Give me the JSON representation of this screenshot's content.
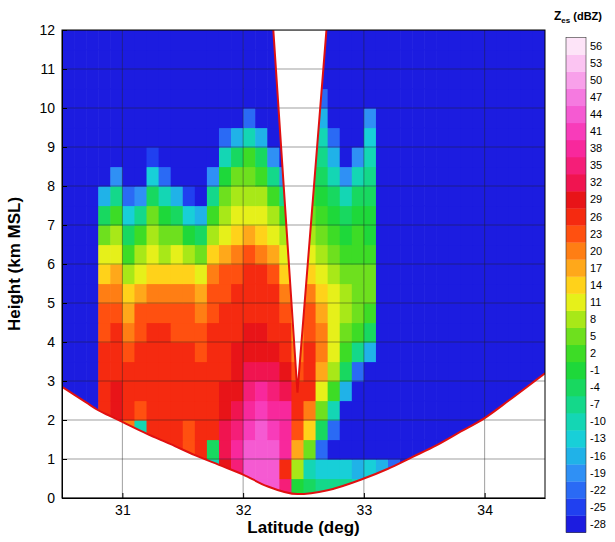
{
  "chart_data": {
    "type": "heatmap",
    "x_label": "Latitude (deg)",
    "y_label": "Height (km MSL)",
    "xlim": [
      30.5,
      34.5
    ],
    "ylim": [
      0,
      12
    ],
    "xticks": [
      31,
      32,
      33,
      34
    ],
    "yticks": [
      0,
      1,
      2,
      3,
      4,
      5,
      6,
      7,
      8,
      9,
      10,
      11,
      12
    ],
    "grid": true,
    "x": [
      30.55,
      30.65,
      30.75,
      30.85,
      30.95,
      31.05,
      31.15,
      31.25,
      31.35,
      31.45,
      31.55,
      31.65,
      31.75,
      31.85,
      31.95,
      32.05,
      32.15,
      32.25,
      32.35,
      32.45,
      32.55,
      32.65,
      32.75,
      32.85,
      32.95,
      33.05,
      33.15,
      33.25,
      33.35,
      33.45,
      33.55,
      33.65,
      33.75,
      33.85,
      33.95,
      34.05,
      34.15,
      34.25,
      34.35,
      34.45
    ],
    "y": [
      0.25,
      0.75,
      1.25,
      1.75,
      2.25,
      2.75,
      3.25,
      3.75,
      4.25,
      4.75,
      5.25,
      5.75,
      6.25,
      6.75,
      7.25,
      7.75,
      8.25,
      8.75,
      9.25,
      9.75,
      10.25,
      10.75,
      11.25,
      11.75
    ],
    "z": [
      [
        null,
        null,
        null,
        null,
        null,
        null,
        null,
        null,
        null,
        null,
        null,
        null,
        null,
        null,
        null,
        41,
        44,
        44,
        35,
        -1,
        -4,
        -7,
        -7,
        -7,
        -10,
        null,
        null,
        null,
        null,
        null,
        null,
        null,
        null,
        null,
        null,
        null,
        null,
        null,
        null,
        null
      ],
      [
        null,
        null,
        null,
        null,
        null,
        null,
        null,
        null,
        null,
        null,
        null,
        23,
        -10,
        29,
        35,
        44,
        46,
        44,
        26,
        8,
        -10,
        -13,
        -13,
        -13,
        -16,
        -13,
        -16,
        -22,
        -28,
        null,
        null,
        null,
        null,
        null,
        null,
        null,
        null,
        null,
        null,
        null
      ],
      [
        null,
        null,
        null,
        null,
        null,
        null,
        null,
        null,
        26,
        26,
        24,
        26,
        -4,
        32,
        38,
        44,
        46,
        44,
        38,
        17,
        5,
        -22,
        -28,
        -28,
        -28,
        -28,
        -28,
        -28,
        -28,
        -28,
        -28,
        -28,
        null,
        null,
        null,
        null,
        null,
        null,
        null,
        null
      ],
      [
        null,
        null,
        null,
        null,
        26,
        20,
        -10,
        26,
        27,
        26,
        25,
        26,
        26,
        32,
        36,
        41,
        44,
        42,
        40,
        23,
        14,
        -4,
        -22,
        -28,
        -28,
        -28,
        -28,
        -28,
        -28,
        -28,
        -28,
        -28,
        -28,
        -28,
        -28,
        null,
        null,
        null,
        null,
        null
      ],
      [
        null,
        -28,
        -28,
        26,
        29,
        26,
        23,
        27,
        28,
        26,
        26,
        26,
        27,
        30,
        33,
        38,
        41,
        40,
        38,
        26,
        20,
        5,
        -10,
        -28,
        -28,
        -28,
        -28,
        -28,
        -28,
        -28,
        -28,
        -28,
        -28,
        -28,
        -28,
        -28,
        -28,
        null,
        null,
        null
      ],
      [
        -28,
        -28,
        -28,
        26,
        29,
        26,
        26,
        28,
        28,
        26,
        26,
        26,
        27,
        29,
        31,
        35,
        38,
        37,
        34,
        26,
        26,
        11,
        2,
        -16,
        -28,
        -28,
        -28,
        -28,
        -28,
        -28,
        -28,
        -28,
        -28,
        -28,
        -28,
        -28,
        -28,
        -28,
        -28,
        -28
      ],
      [
        -28,
        -28,
        -28,
        26,
        28,
        26,
        26,
        28,
        27,
        26,
        26,
        26,
        27,
        28,
        30,
        32,
        34,
        33,
        30,
        24,
        27,
        17,
        8,
        -4,
        -22,
        -28,
        -28,
        -28,
        -28,
        -28,
        -28,
        -28,
        -28,
        -28,
        -28,
        -28,
        -28,
        -28,
        -28,
        -28
      ],
      [
        -28,
        -28,
        -28,
        26,
        27,
        25,
        26,
        28,
        26,
        26,
        26,
        25,
        26,
        28,
        29,
        30,
        31,
        30,
        28,
        20,
        26,
        20,
        11,
        2,
        -7,
        -16,
        -28,
        -28,
        -28,
        -28,
        -28,
        -28,
        -28,
        -28,
        -28,
        -28,
        -28,
        -28,
        -28,
        -28
      ],
      [
        -28,
        -28,
        -28,
        24,
        26,
        22,
        25,
        27,
        26,
        25,
        25,
        24,
        26,
        27,
        28,
        29,
        29,
        28,
        26,
        17,
        25,
        20,
        11,
        5,
        2,
        -4,
        -28,
        -28,
        -28,
        -28,
        -28,
        -28,
        -28,
        -28,
        -28,
        -28,
        -28,
        -28,
        -28,
        -28
      ],
      [
        -28,
        -28,
        -28,
        23,
        25,
        17,
        23,
        25,
        24,
        23,
        23,
        22,
        25,
        26,
        27,
        28,
        28,
        27,
        24,
        14,
        23,
        17,
        11,
        8,
        5,
        2,
        -28,
        -28,
        -28,
        -28,
        -28,
        -28,
        -28,
        -28,
        -28,
        -28,
        -28,
        -28,
        -28,
        -28
      ],
      [
        -28,
        -28,
        -28,
        20,
        22,
        14,
        17,
        22,
        20,
        20,
        20,
        17,
        23,
        25,
        26,
        27,
        27,
        26,
        20,
        null,
        20,
        14,
        11,
        8,
        5,
        5,
        -28,
        -28,
        -28,
        -28,
        -28,
        -28,
        -28,
        -28,
        -28,
        -28,
        -28,
        -28,
        -28,
        -28
      ],
      [
        -28,
        -28,
        -28,
        14,
        17,
        8,
        11,
        14,
        14,
        14,
        14,
        11,
        20,
        23,
        24,
        26,
        26,
        23,
        14,
        null,
        14,
        11,
        8,
        5,
        5,
        5,
        -28,
        -28,
        -28,
        -28,
        -28,
        -28,
        -28,
        -28,
        -28,
        -28,
        -28,
        -28,
        -28,
        -28
      ],
      [
        -28,
        -28,
        -28,
        11,
        11,
        2,
        8,
        11,
        8,
        11,
        8,
        5,
        14,
        17,
        20,
        23,
        20,
        17,
        11,
        null,
        11,
        8,
        5,
        2,
        2,
        2,
        -28,
        -28,
        -28,
        -28,
        -28,
        -28,
        -28,
        -28,
        -28,
        -28,
        -28,
        -28,
        -28,
        -28
      ],
      [
        -28,
        -28,
        -28,
        5,
        8,
        -4,
        2,
        8,
        5,
        5,
        -1,
        -4,
        8,
        11,
        14,
        17,
        14,
        11,
        8,
        null,
        8,
        5,
        2,
        -1,
        2,
        -1,
        -28,
        -28,
        -28,
        -28,
        -28,
        -28,
        -28,
        -28,
        -28,
        -28,
        -28,
        -28,
        -28,
        -28
      ],
      [
        -28,
        -28,
        -28,
        -4,
        2,
        -13,
        -7,
        5,
        -1,
        -4,
        -13,
        -16,
        2,
        8,
        11,
        11,
        11,
        8,
        2,
        null,
        5,
        2,
        -1,
        -4,
        -1,
        -1,
        -28,
        -28,
        -28,
        -28,
        -28,
        -28,
        -28,
        -28,
        -28,
        -28,
        -28,
        -28,
        -28,
        -28
      ],
      [
        -28,
        -28,
        -28,
        -16,
        -7,
        -22,
        -19,
        -4,
        -10,
        -16,
        -25,
        -28,
        -7,
        5,
        8,
        8,
        8,
        2,
        -7,
        null,
        2,
        -1,
        -4,
        -10,
        -4,
        -4,
        -28,
        -28,
        -28,
        -28,
        -28,
        -28,
        -28,
        -28,
        -28,
        -28,
        -28,
        -28,
        -28,
        -28
      ],
      [
        -28,
        -28,
        -28,
        -28,
        -19,
        -28,
        -28,
        -13,
        -22,
        -28,
        -28,
        -28,
        -19,
        -1,
        5,
        5,
        2,
        -7,
        -19,
        null,
        -4,
        -4,
        -10,
        -19,
        -10,
        -7,
        -28,
        -28,
        -28,
        -28,
        -28,
        -28,
        -28,
        -28,
        -28,
        -28,
        -28,
        -28,
        -28,
        -28
      ],
      [
        -28,
        -28,
        -28,
        -28,
        -28,
        -28,
        -28,
        -25,
        -28,
        -28,
        -28,
        -28,
        -28,
        -10,
        -4,
        2,
        -4,
        -19,
        -28,
        null,
        null,
        -7,
        -16,
        -28,
        -19,
        -10,
        -28,
        -28,
        -28,
        -28,
        -28,
        -28,
        -28,
        -28,
        -28,
        -28,
        -28,
        -28,
        -28,
        -28
      ],
      [
        -28,
        -28,
        -28,
        -28,
        -28,
        -28,
        -28,
        -28,
        -28,
        -28,
        -28,
        -28,
        -28,
        -22,
        -16,
        -10,
        -16,
        -28,
        -28,
        null,
        null,
        -10,
        -22,
        -28,
        -28,
        -13,
        -28,
        -28,
        -28,
        -28,
        -28,
        -28,
        -28,
        -28,
        -28,
        -28,
        -28,
        -28,
        -28,
        -28
      ],
      [
        -28,
        -28,
        -28,
        -28,
        -28,
        -28,
        -28,
        -28,
        -28,
        -28,
        -28,
        -28,
        -28,
        -28,
        -28,
        -22,
        -28,
        -28,
        -28,
        null,
        null,
        -16,
        -28,
        -28,
        -28,
        -19,
        -28,
        -28,
        -28,
        -28,
        -28,
        -28,
        -28,
        -28,
        -28,
        -28,
        -28,
        -28,
        -28,
        -28
      ],
      [
        -28,
        -28,
        -28,
        -28,
        -28,
        -28,
        -28,
        -28,
        -28,
        -28,
        -28,
        -28,
        -28,
        -28,
        -28,
        -28,
        -28,
        -28,
        null,
        null,
        null,
        -22,
        -28,
        -28,
        -28,
        -28,
        -28,
        -28,
        -28,
        -28,
        -28,
        -28,
        -28,
        -28,
        -28,
        -28,
        -28,
        -28,
        -28,
        -28
      ],
      [
        -28,
        -28,
        -28,
        -28,
        -28,
        -28,
        -28,
        -28,
        -28,
        -28,
        -28,
        -28,
        -28,
        -28,
        -28,
        -28,
        -28,
        -28,
        null,
        null,
        null,
        -28,
        -28,
        -28,
        -28,
        -28,
        -28,
        -28,
        -28,
        -28,
        -28,
        -28,
        -28,
        -28,
        -28,
        -28,
        -28,
        -28,
        -28,
        -28
      ],
      [
        -28,
        -28,
        -28,
        -28,
        -28,
        -28,
        -28,
        -28,
        -28,
        -28,
        -28,
        -28,
        -28,
        -28,
        -28,
        -28,
        -28,
        -28,
        null,
        null,
        null,
        -28,
        -28,
        -28,
        -28,
        -28,
        -28,
        -28,
        -28,
        -28,
        -28,
        -28,
        -28,
        -28,
        -28,
        -28,
        -28,
        -28,
        -28,
        -28
      ],
      [
        -28,
        -28,
        -28,
        -28,
        -28,
        -28,
        -28,
        -28,
        -28,
        -28,
        -28,
        -28,
        -28,
        -28,
        -28,
        -28,
        -28,
        -28,
        null,
        null,
        null,
        -28,
        -28,
        -28,
        -28,
        -28,
        -28,
        -28,
        -28,
        -28,
        -28,
        -28,
        -28,
        -28,
        -28,
        -28,
        -28,
        -28,
        -28,
        -28
      ]
    ],
    "scan_boundary": {
      "lower": {
        "x": [
          30.5,
          30.6,
          30.7,
          30.8,
          30.9,
          31.0,
          31.2,
          31.4,
          31.6,
          31.8,
          32.0,
          32.2,
          32.45,
          32.7,
          33.0,
          33.2,
          33.4,
          33.6,
          33.8,
          34.0,
          34.2,
          34.5
        ],
        "y": [
          2.85,
          2.65,
          2.45,
          2.25,
          2.1,
          1.95,
          1.65,
          1.38,
          1.1,
          0.85,
          0.6,
          0.3,
          0.1,
          0.2,
          0.5,
          0.75,
          1.05,
          1.35,
          1.7,
          2.05,
          2.5,
          3.2
        ]
      },
      "cone": {
        "x": [
          32.25,
          32.45,
          32.69
        ],
        "y": [
          12,
          2.7,
          12
        ]
      }
    },
    "colorbar": {
      "title": "Z",
      "title_subscript": "es",
      "title_units": "(dBZ)",
      "range": [
        -28,
        56
      ],
      "ticks": [
        -28,
        -25,
        -22,
        -19,
        -16,
        -13,
        -10,
        -7,
        -4,
        -1,
        2,
        5,
        8,
        11,
        14,
        17,
        20,
        23,
        26,
        29,
        32,
        35,
        38,
        41,
        44,
        47,
        50,
        53,
        56
      ],
      "colors": [
        "#1c1ce0",
        "#2040f0",
        "#2a6af5",
        "#2f90f5",
        "#20b2e8",
        "#18cfd8",
        "#14d6b4",
        "#14d88a",
        "#18d860",
        "#1ed83a",
        "#3ddc26",
        "#6ee01e",
        "#a8e818",
        "#e6f01a",
        "#ffd21a",
        "#ffa81a",
        "#ff7e14",
        "#ff5010",
        "#f52a10",
        "#e81418",
        "#f01450",
        "#f51e78",
        "#f8289c",
        "#f83cba",
        "#f55ad2",
        "#f57ae0",
        "#f8a0ea",
        "#fbc4f2",
        "#fde4f8"
      ]
    }
  }
}
